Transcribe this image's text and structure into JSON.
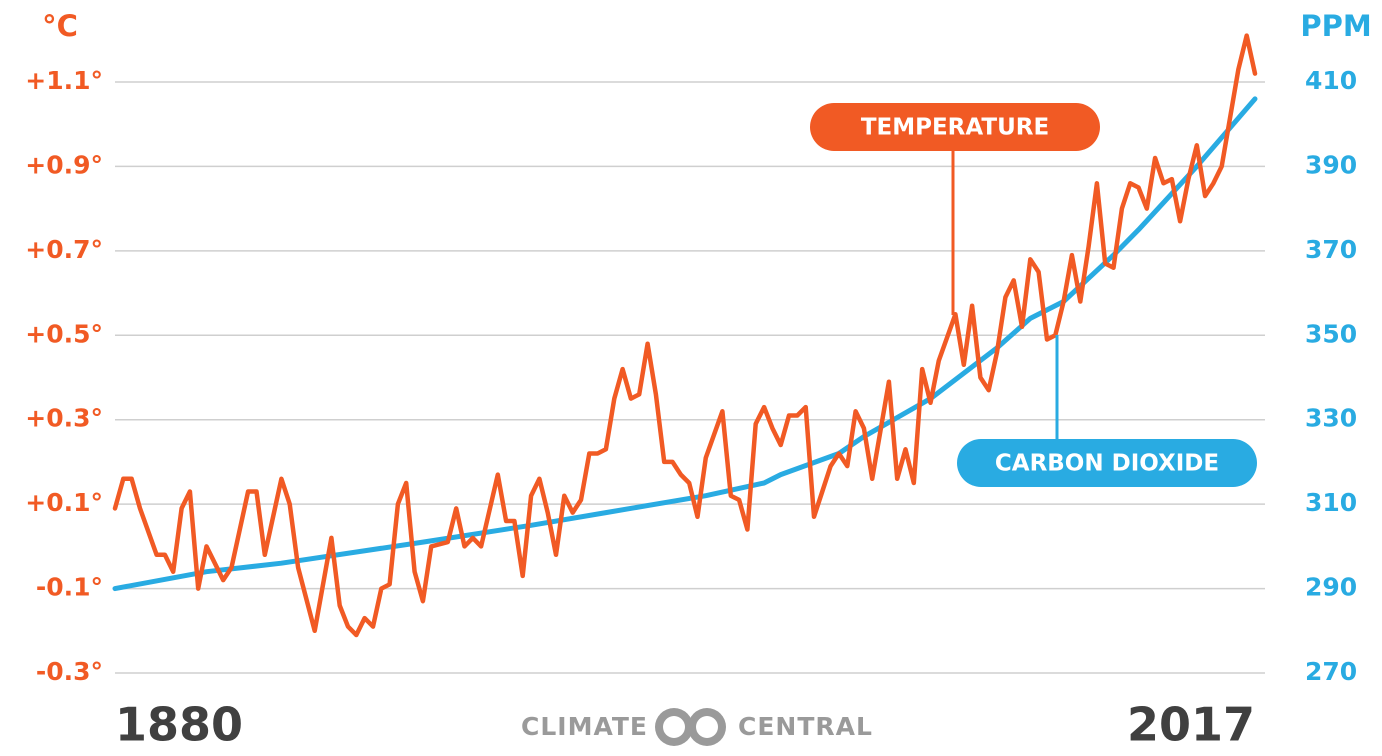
{
  "chart_data": {
    "type": "line",
    "y_axis_label": "°C",
    "y2_axis_label": "PPM",
    "logo_text": [
      "CLIMATE",
      "CENTRAL"
    ],
    "xlim": [
      1880,
      2017
    ],
    "xticks": [
      1880,
      2017
    ],
    "ylim": [
      -0.3,
      1.1
    ],
    "yticks": [
      {
        "value": -0.3,
        "label": "-0.3°"
      },
      {
        "value": -0.1,
        "label": "-0.1°"
      },
      {
        "value": 0.1,
        "label": "+0.1°"
      },
      {
        "value": 0.3,
        "label": "+0.3°"
      },
      {
        "value": 0.5,
        "label": "+0.5°"
      },
      {
        "value": 0.7,
        "label": "+0.7°"
      },
      {
        "value": 0.9,
        "label": "+0.9°"
      },
      {
        "value": 1.1,
        "label": "+1.1°"
      }
    ],
    "y2lim": [
      270,
      410
    ],
    "y2ticks": [
      270,
      290,
      310,
      330,
      350,
      370,
      390,
      410
    ],
    "grid": true,
    "series": [
      {
        "name": "TEMPERATURE",
        "color": "#f15a24",
        "axis": "y",
        "x": [
          1880,
          1881,
          1882,
          1883,
          1885,
          1886,
          1887,
          1888,
          1889,
          1890,
          1891,
          1893,
          1894,
          1896,
          1897,
          1898,
          1900,
          1901,
          1902,
          1904,
          1906,
          1907,
          1908,
          1909,
          1910,
          1911,
          1912,
          1913,
          1914,
          1915,
          1916,
          1917,
          1918,
          1920,
          1921,
          1922,
          1923,
          1924,
          1926,
          1927,
          1928,
          1929,
          1930,
          1931,
          1932,
          1933,
          1934,
          1935,
          1936,
          1937,
          1938,
          1939,
          1940,
          1941,
          1942,
          1943,
          1944,
          1945,
          1946,
          1947,
          1948,
          1949,
          1950,
          1951,
          1953,
          1954,
          1955,
          1956,
          1957,
          1958,
          1959,
          1960,
          1961,
          1962,
          1963,
          1964,
          1965,
          1966,
          1967,
          1968,
          1969,
          1970,
          1971,
          1973,
          1974,
          1975,
          1976,
          1977,
          1978,
          1979,
          1981,
          1982,
          1983,
          1984,
          1985,
          1986,
          1987,
          1988,
          1989,
          1990,
          1991,
          1992,
          1993,
          1994,
          1995,
          1996,
          1997,
          1998,
          1999,
          2000,
          2001,
          2002,
          2003,
          2004,
          2005,
          2006,
          2007,
          2008,
          2009,
          2010,
          2011,
          2012,
          2013,
          2015,
          2016,
          2017
        ],
        "values": [
          0.09,
          0.16,
          0.16,
          0.09,
          -0.02,
          -0.02,
          -0.06,
          0.09,
          0.13,
          -0.1,
          0.0,
          -0.08,
          -0.05,
          0.13,
          0.13,
          -0.02,
          0.16,
          0.1,
          -0.05,
          -0.2,
          0.02,
          -0.14,
          -0.19,
          -0.21,
          -0.17,
          -0.19,
          -0.1,
          -0.09,
          0.1,
          0.15,
          -0.06,
          -0.13,
          0.0,
          0.01,
          0.09,
          0.0,
          0.02,
          0.0,
          0.17,
          0.06,
          0.06,
          -0.07,
          0.12,
          0.16,
          0.08,
          -0.02,
          0.12,
          0.08,
          0.11,
          0.22,
          0.22,
          0.23,
          0.35,
          0.42,
          0.35,
          0.36,
          0.48,
          0.36,
          0.2,
          0.2,
          0.17,
          0.15,
          0.07,
          0.21,
          0.32,
          0.12,
          0.11,
          0.04,
          0.29,
          0.33,
          0.28,
          0.24,
          0.31,
          0.31,
          0.33,
          0.07,
          0.13,
          0.19,
          0.22,
          0.19,
          0.32,
          0.28,
          0.16,
          0.39,
          0.16,
          0.23,
          0.15,
          0.42,
          0.34,
          0.44,
          0.55,
          0.43,
          0.57,
          0.4,
          0.37,
          0.46,
          0.59,
          0.63,
          0.52,
          0.68,
          0.65,
          0.49,
          0.5,
          0.58,
          0.69,
          0.58,
          0.71,
          0.86,
          0.67,
          0.66,
          0.8,
          0.86,
          0.85,
          0.8,
          0.92,
          0.86,
          0.87,
          0.77,
          0.87,
          0.95,
          0.83,
          0.86,
          0.9,
          1.13,
          1.21,
          1.12
        ]
      },
      {
        "name": "CARBON DIOXIDE",
        "color": "#29abe2",
        "axis": "y2",
        "x": [
          1880,
          1891,
          1900,
          1917,
          1930,
          1939,
          1951,
          1958,
          1960,
          1967,
          1970,
          1978,
          1986,
          1990,
          1994,
          2000,
          2003,
          2010,
          2017
        ],
        "values": [
          290,
          294,
          296,
          301,
          305,
          308,
          312,
          315,
          317,
          322,
          326,
          335,
          347,
          354,
          358,
          369,
          375,
          390,
          406
        ]
      }
    ]
  }
}
